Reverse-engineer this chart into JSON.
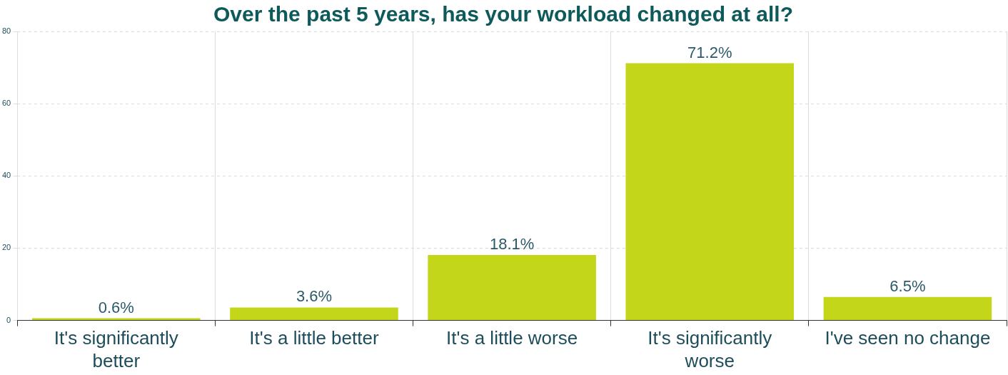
{
  "chart_data": {
    "type": "bar",
    "title": "Over the past 5 years, has your workload changed at all?",
    "categories": [
      "It's significantly better",
      "It's a little better",
      "It's a little worse",
      "It's significantly worse",
      "I've seen no change"
    ],
    "values": [
      0.6,
      3.6,
      18.1,
      71.2,
      6.5
    ],
    "value_labels": [
      "0.6%",
      "3.6%",
      "18.1%",
      "71.2%",
      "6.5%"
    ],
    "color": "#c4d61a",
    "ylim": [
      0,
      80
    ],
    "yticks": [
      0,
      20,
      40,
      60,
      80
    ],
    "grid": true,
    "legend": false
  }
}
